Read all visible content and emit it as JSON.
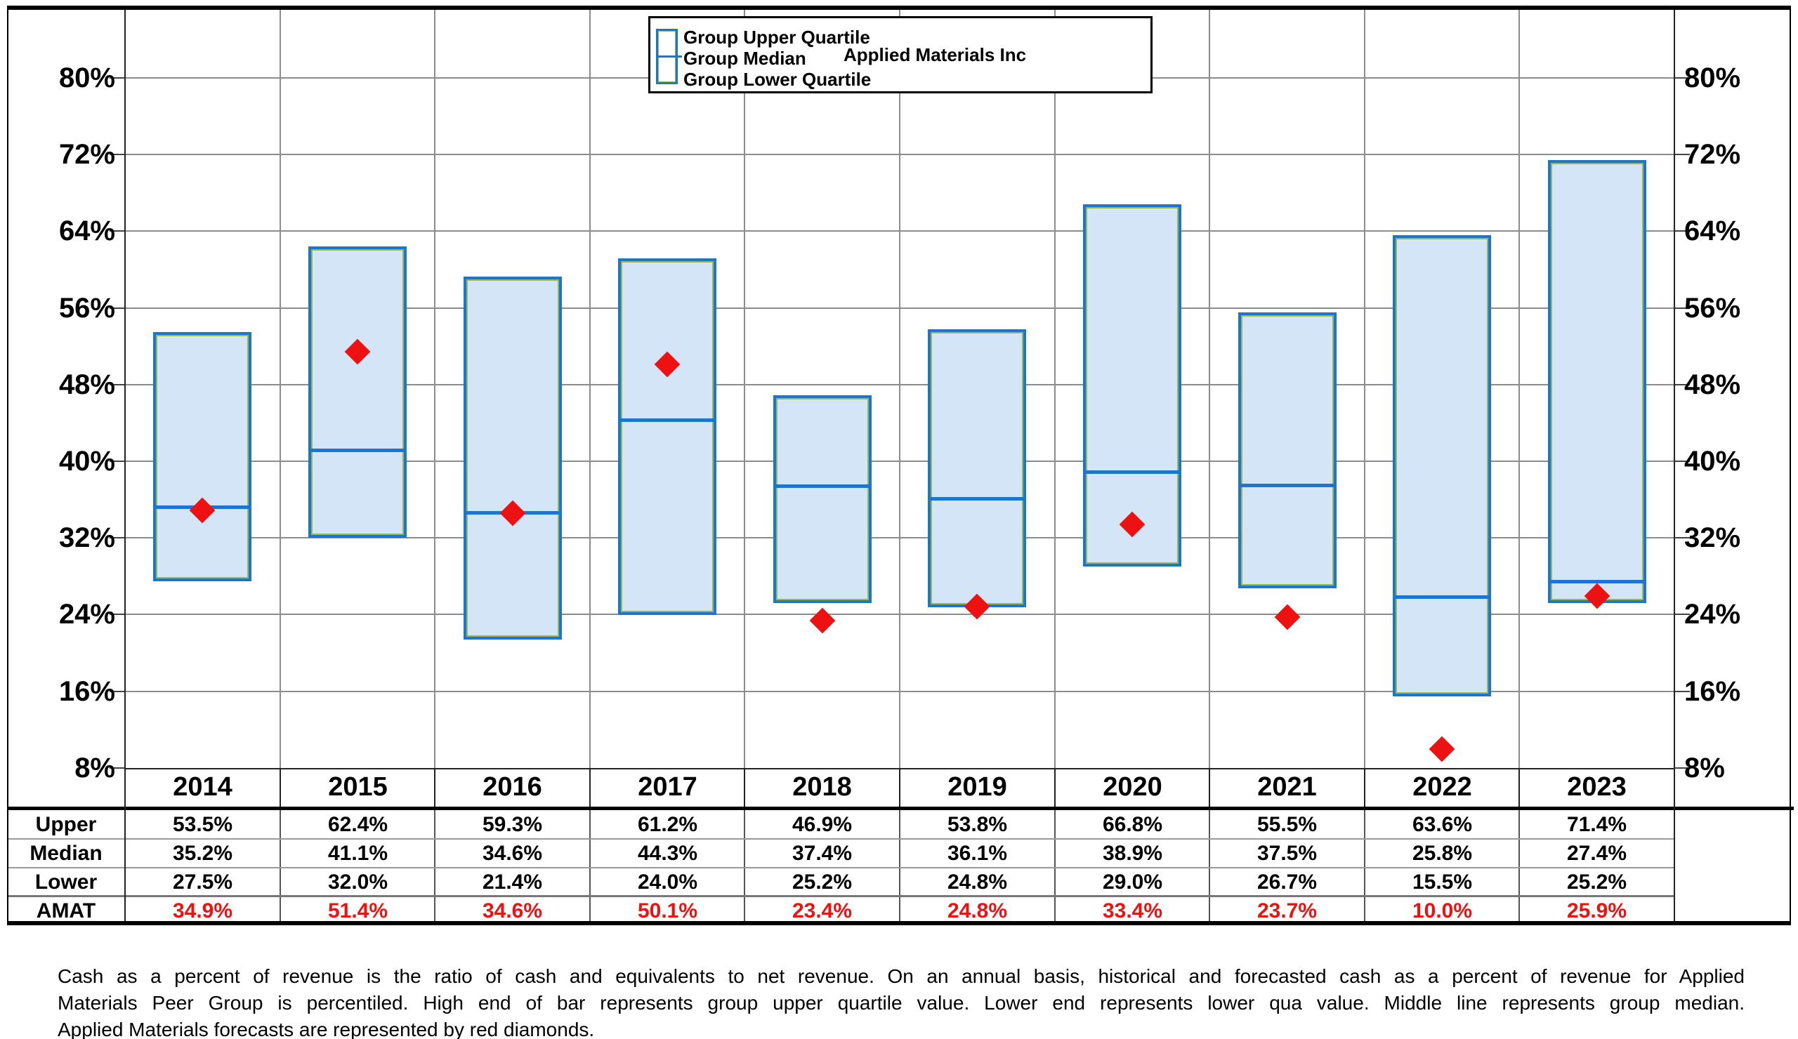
{
  "legend": {
    "bar_labels": [
      "Group Upper Quartile",
      "Group Median",
      "Group Lower Quartile"
    ],
    "diamond_label": "Applied Materials Inc"
  },
  "axis": {
    "tick_labels": [
      "80%",
      "72%",
      "64%",
      "56%",
      "48%",
      "40%",
      "32%",
      "24%",
      "16%",
      "8%"
    ]
  },
  "chart_data": {
    "type": "floating-bar",
    "description": "Quartile range bars (upper-to-lower) with median line and AMAT diamond markers, cash as a percent of revenue",
    "categories": [
      "2014",
      "2015",
      "2016",
      "2017",
      "2018",
      "2019",
      "2020",
      "2021",
      "2022",
      "2023"
    ],
    "series": [
      {
        "name": "Group Upper Quartile",
        "values": [
          53.5,
          62.4,
          59.3,
          61.2,
          46.9,
          53.8,
          66.8,
          55.5,
          63.6,
          71.4
        ]
      },
      {
        "name": "Group Median",
        "values": [
          35.2,
          41.1,
          34.6,
          44.3,
          37.4,
          36.1,
          38.9,
          37.5,
          25.8,
          27.4
        ]
      },
      {
        "name": "Group Lower Quartile",
        "values": [
          27.5,
          32.0,
          21.4,
          24.0,
          25.2,
          24.8,
          29.0,
          26.7,
          15.5,
          25.2
        ]
      },
      {
        "name": "Applied Materials Inc",
        "values": [
          34.9,
          51.4,
          34.6,
          50.1,
          23.4,
          24.8,
          33.4,
          23.7,
          10.0,
          25.9
        ]
      }
    ],
    "yticks": [
      80,
      72,
      64,
      56,
      48,
      40,
      32,
      24,
      16,
      8
    ],
    "ylim": [
      7.5,
      87.5
    ],
    "grid": true,
    "legend_position": "top-center",
    "ylabel": "",
    "xlabel": ""
  },
  "table": {
    "row_labels": [
      "Upper",
      "Median",
      "Lower",
      "AMAT"
    ],
    "rows": [
      [
        "53.5%",
        "62.4%",
        "59.3%",
        "61.2%",
        "46.9%",
        "53.8%",
        "66.8%",
        "55.5%",
        "63.6%",
        "71.4%"
      ],
      [
        "35.2%",
        "41.1%",
        "34.6%",
        "44.3%",
        "37.4%",
        "36.1%",
        "38.9%",
        "37.5%",
        "25.8%",
        "27.4%"
      ],
      [
        "27.5%",
        "32.0%",
        "21.4%",
        "24.0%",
        "25.2%",
        "24.8%",
        "29.0%",
        "26.7%",
        "15.5%",
        "25.2%"
      ],
      [
        "34.9%",
        "51.4%",
        "34.6%",
        "50.1%",
        "23.4%",
        "24.8%",
        "33.4%",
        "23.7%",
        "10.0%",
        "25.9%"
      ]
    ]
  },
  "caption": {
    "lines": [
      "Cash as a percent of revenue is the ratio of cash and equivalents to net revenue.  On an annual basis, historical and forecasted cash as a percent of revenue for Applied",
      "Materials Peer Group is percentiled.  High end of bar represents group upper quartile value.  Lower end represents lower qua value.  Middle line represents group median.",
      "Applied Materials forecasts are represented by red diamonds."
    ]
  },
  "colors": {
    "bar_fill": "#d3e5f7",
    "bar_border": "#1b76d2",
    "bar_inner_edge": "#9cb94c",
    "marker_red": "#ee1111",
    "amat_text_red": "#ee1111",
    "grid_gray": "#8c8c8c",
    "separator_gray": "#999999"
  }
}
